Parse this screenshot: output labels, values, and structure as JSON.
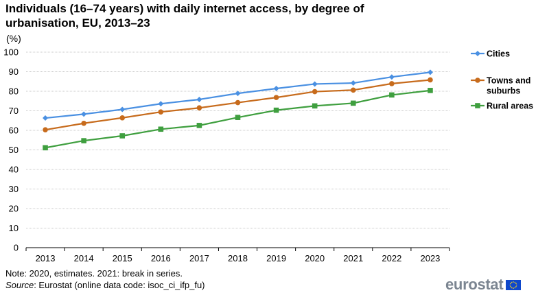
{
  "title_line1": "Individuals (16–74 years) with daily internet access, by degree of",
  "title_line2": "urbanisation, EU, 2013–23",
  "unit": "(%)",
  "note": "Note: 2020, estimates. 2021: break in series.",
  "source_label": "Source",
  "source_text": ": Eurostat (online data code: isoc_ci_ifp_fu)",
  "logo_text": "eurostat",
  "chart_data": {
    "type": "line",
    "title": "Individuals (16–74 years) with daily internet access, by degree of urbanisation, EU, 2013–23",
    "xlabel": "",
    "ylabel": "(%)",
    "ylim": [
      0,
      100
    ],
    "yticks": [
      0,
      10,
      20,
      30,
      40,
      50,
      60,
      70,
      80,
      90,
      100
    ],
    "grid": true,
    "legend_position": "right",
    "categories": [
      "2013",
      "2014",
      "2015",
      "2016",
      "2017",
      "2018",
      "2019",
      "2020",
      "2021",
      "2022",
      "2023"
    ],
    "series": [
      {
        "name": "Cities",
        "color": "#4a90e2",
        "marker": "diamond",
        "values": [
          66.3,
          68.3,
          70.7,
          73.6,
          75.8,
          78.9,
          81.4,
          83.7,
          84.2,
          87.3,
          89.7
        ]
      },
      {
        "name": "Towns and suburbs",
        "color": "#c76b1c",
        "marker": "circle",
        "values": [
          60.3,
          63.6,
          66.4,
          69.4,
          71.5,
          74.2,
          76.8,
          79.8,
          80.6,
          83.9,
          85.8
        ]
      },
      {
        "name": "Rural areas",
        "color": "#3f9f3f",
        "marker": "square",
        "values": [
          51.1,
          54.7,
          57.2,
          60.6,
          62.5,
          66.6,
          70.3,
          72.5,
          73.9,
          78.1,
          80.4
        ]
      }
    ]
  }
}
